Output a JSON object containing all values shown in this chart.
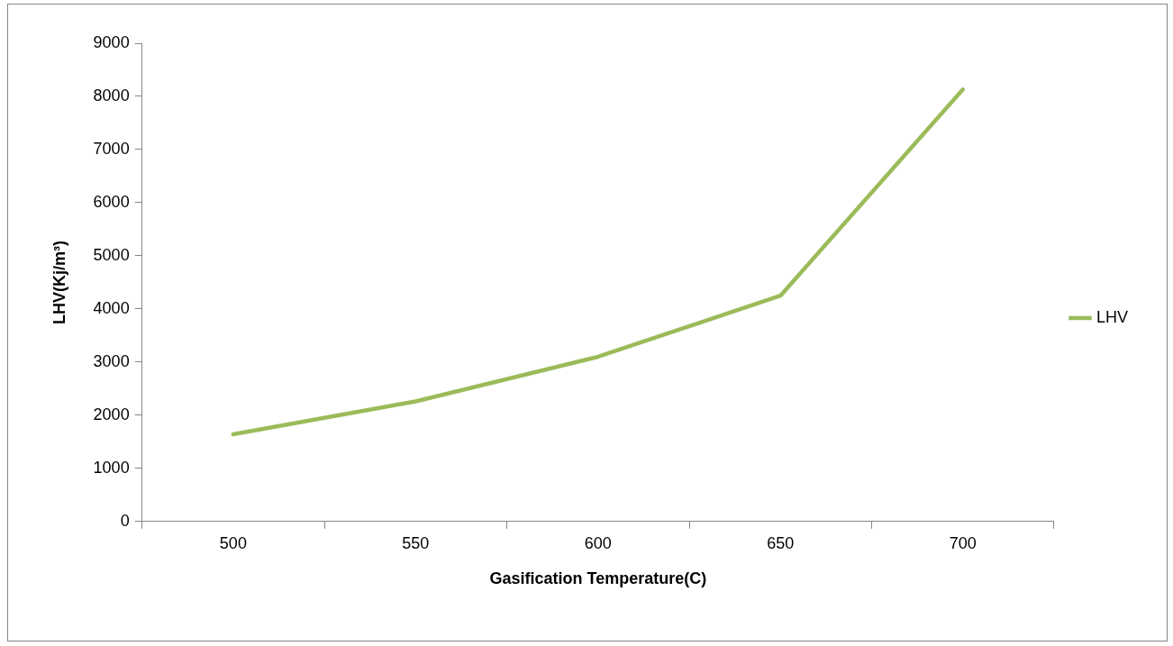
{
  "chart_data": {
    "type": "line",
    "xlabel": "Gasification Temperature(C)",
    "ylabel": "LHV(Kj/m³)",
    "categories": [
      "500",
      "550",
      "600",
      "650",
      "700"
    ],
    "series": [
      {
        "name": "LHV",
        "color": "#9bbb59",
        "values": [
          1640,
          2260,
          3100,
          4250,
          8130
        ]
      }
    ],
    "ylim": [
      0,
      9000
    ],
    "yticks": [
      0,
      1000,
      2000,
      3000,
      4000,
      5000,
      6000,
      7000,
      8000,
      9000
    ],
    "legend": "right",
    "marker": "none",
    "line_style": "solid"
  }
}
